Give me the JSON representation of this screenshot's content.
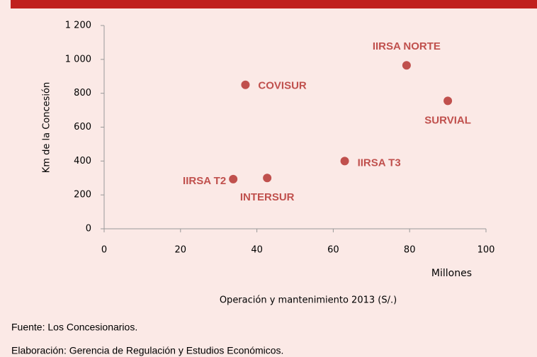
{
  "chart_data": {
    "type": "scatter",
    "x": [
      37,
      79.2,
      90,
      63,
      33.8,
      42.7
    ],
    "values": [
      850,
      965,
      755,
      400,
      293,
      300
    ],
    "labels": [
      "COVISUR",
      "IIRSA NORTE",
      "SURVIAL",
      "IIRSA T3",
      "IIRSA T2",
      "INTERSUR"
    ],
    "color": "#c0504d",
    "xlabel": "Operación y mantenimiento 2013 (S/.)",
    "ylabel": "Km de la Concesión",
    "annotation": "Millones",
    "xlim": [
      0,
      100
    ],
    "xticks": [
      0,
      20,
      40,
      60,
      80,
      100
    ],
    "ylim": [
      0,
      1200
    ],
    "yticks": [
      0,
      200,
      400,
      600,
      800,
      {
        "value": 1000,
        "label": "1 000"
      },
      {
        "value": 1200,
        "label": "1 200"
      }
    ]
  },
  "notes": [
    "Fuente: Los Concesionarios.",
    "Elaboración: Gerencia de Regulación y Estudios Económicos."
  ]
}
